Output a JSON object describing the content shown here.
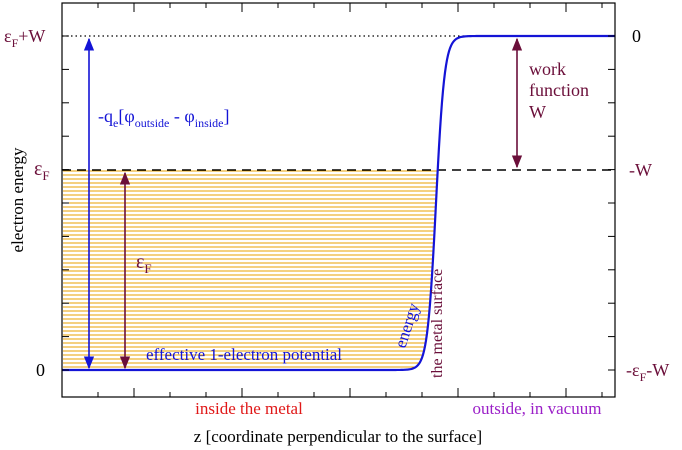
{
  "colors": {
    "maroon": "#6b0f3a",
    "blue": "#1414d6",
    "fill": "#e8a000",
    "red": "#e01818",
    "purple": "#9b20c8",
    "black": "#000000"
  },
  "axes": {
    "ylabel": "electron energy",
    "xlabel": "z [coordinate perpendicular to the surface]",
    "left_ticks": {
      "top": {
        "main": "ε",
        "sub": "F",
        "rest": "+W"
      },
      "mid": {
        "main": "ε",
        "sub": "F",
        "rest": ""
      },
      "bottom": {
        "main": "0",
        "sub": "",
        "rest": ""
      }
    },
    "right_ticks": {
      "top": {
        "main": "0",
        "sub": "",
        "rest": ""
      },
      "mid": {
        "main": "-W",
        "sub": "",
        "rest": ""
      },
      "bottom": {
        "pre": "-ε",
        "sub": "F",
        "rest": "-W"
      }
    }
  },
  "annotations": {
    "potential_diff": {
      "pre": "-q",
      "sub1": "e",
      "mid": "[φ",
      "sub2": "outside",
      "mid2": " - φ",
      "sub3": "inside",
      "end": "]"
    },
    "fermi_arrow": {
      "main": "ε",
      "sub": "F"
    },
    "work_function": [
      "work",
      "function",
      "W"
    ],
    "potential_label": "effective 1-electron potential",
    "energy_word": "energy",
    "surface_label": "the metal surface",
    "inside_label": "inside the metal",
    "outside_label": "outside, in vacuum"
  }
}
